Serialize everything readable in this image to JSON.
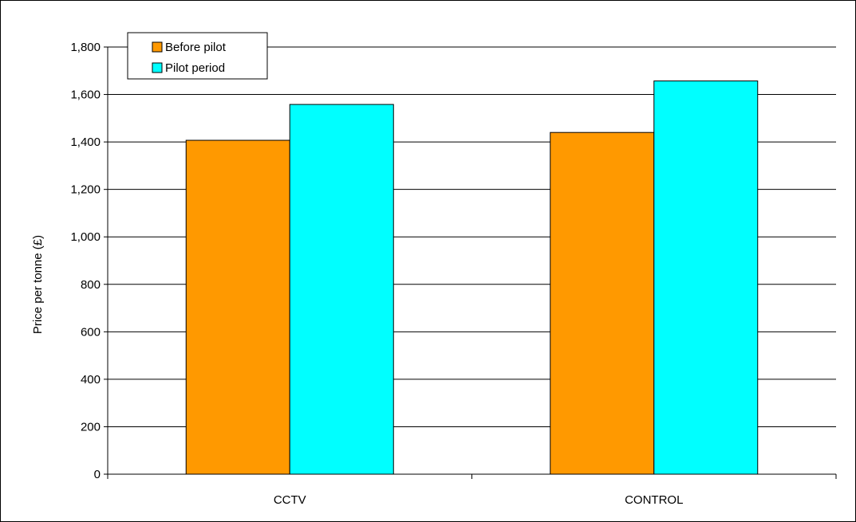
{
  "chart_data": {
    "type": "bar",
    "title": "",
    "xlabel": "",
    "ylabel": "Price per tonne (£)",
    "categories": [
      "CCTV",
      "CONTROL"
    ],
    "series": [
      {
        "name": "Before pilot",
        "values": [
          1407,
          1440
        ],
        "color": "#FF9900"
      },
      {
        "name": "Pilot period",
        "values": [
          1558,
          1657
        ],
        "color": "#00FFFF"
      }
    ],
    "ylim": [
      0,
      1800
    ],
    "yticks": [
      0,
      200,
      400,
      600,
      800,
      1000,
      1200,
      1400,
      1600,
      1800
    ],
    "ytick_labels": [
      "0",
      "200",
      "400",
      "600",
      "800",
      "1,000",
      "1,200",
      "1,400",
      "1,600",
      "1,800"
    ],
    "grid": true,
    "legend_position": "top-left"
  }
}
